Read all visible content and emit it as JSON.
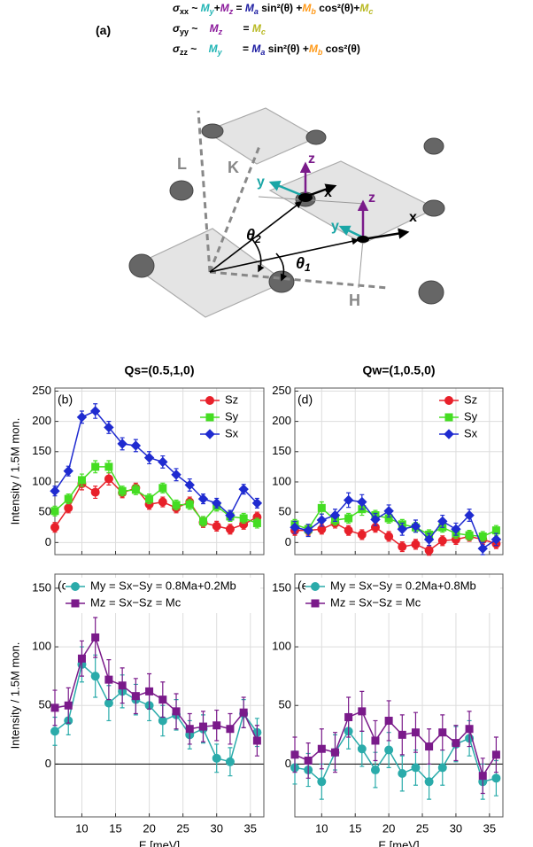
{
  "panel_label": "(a)",
  "equations": [
    [
      "σ",
      "xx",
      " ~ ",
      "M",
      "y",
      "+",
      "M",
      "z",
      " = ",
      "M",
      "a",
      " sin²(θ) +",
      "M",
      "b",
      " cos²(θ)+",
      "M",
      "c"
    ],
    [
      "σ",
      "yy",
      " ~    ",
      "M",
      "z",
      "       = ",
      "M",
      "c"
    ],
    [
      "σ",
      "zz",
      " ~    ",
      "M",
      "y",
      "       = ",
      "M",
      "a",
      " sin²(θ) +",
      "M",
      "b",
      " cos²(θ)"
    ]
  ],
  "diagram": {
    "labels": [
      "L",
      "K",
      "H",
      "x",
      "y",
      "z",
      "x",
      "y",
      "z"
    ],
    "angles": [
      [
        "θ",
        "2"
      ],
      [
        "θ",
        "1"
      ]
    ]
  },
  "chart_data": [
    {
      "type": "line",
      "title": "Qs=(0.5,1,0)",
      "panel_label": "(b)",
      "ylabel": "Intensity / 1.5M mon.",
      "x": [
        6,
        8,
        10,
        12,
        14,
        16,
        18,
        20,
        22,
        24,
        26,
        28,
        30,
        32,
        34,
        36
      ],
      "series": [
        {
          "name": "Sz",
          "color": "#e8202a",
          "marker": "circle",
          "values": [
            25,
            57,
            97,
            83,
            105,
            82,
            90,
            63,
            67,
            57,
            67,
            33,
            27,
            22,
            30,
            42
          ],
          "errors": [
            8,
            8,
            10,
            10,
            10,
            8,
            8,
            8,
            8,
            8,
            8,
            8,
            8,
            8,
            8,
            8
          ]
        },
        {
          "name": "Sy",
          "color": "#44dd22",
          "marker": "square",
          "values": [
            52,
            72,
            103,
            125,
            125,
            85,
            87,
            72,
            90,
            62,
            63,
            35,
            60,
            43,
            40,
            32
          ],
          "errors": [
            8,
            8,
            10,
            10,
            10,
            8,
            8,
            8,
            8,
            8,
            8,
            8,
            8,
            8,
            8,
            8
          ]
        },
        {
          "name": "Sx",
          "color": "#1f2bd0",
          "marker": "diamond",
          "values": [
            85,
            118,
            207,
            217,
            190,
            163,
            160,
            140,
            133,
            112,
            95,
            72,
            65,
            45,
            88,
            65
          ],
          "errors": [
            8,
            8,
            10,
            12,
            10,
            10,
            10,
            10,
            10,
            10,
            10,
            8,
            8,
            8,
            8,
            8
          ]
        }
      ],
      "xlim": [
        6,
        37
      ],
      "ylim": [
        -20,
        255
      ],
      "xticks": [
        10,
        15,
        20,
        25,
        30,
        35
      ],
      "yticks": [
        0,
        50,
        100,
        150,
        200,
        250
      ],
      "grid": true,
      "legend": "upper right"
    },
    {
      "type": "line",
      "title": "Qw=(1,0.5,0)",
      "panel_label": "(d)",
      "x": [
        6,
        8,
        10,
        12,
        14,
        16,
        18,
        20,
        22,
        24,
        26,
        28,
        30,
        32,
        34,
        36
      ],
      "series": [
        {
          "name": "Sz",
          "color": "#e8202a",
          "marker": "circle",
          "values": [
            20,
            20,
            22,
            32,
            20,
            13,
            25,
            10,
            -7,
            -3,
            -13,
            3,
            5,
            10,
            5,
            -2
          ],
          "errors": [
            8,
            8,
            8,
            8,
            8,
            8,
            8,
            8,
            8,
            8,
            8,
            8,
            8,
            8,
            8,
            8
          ]
        },
        {
          "name": "Sy",
          "color": "#44dd22",
          "marker": "square",
          "values": [
            30,
            22,
            57,
            37,
            40,
            55,
            45,
            40,
            30,
            25,
            13,
            25,
            15,
            12,
            10,
            20
          ],
          "errors": [
            8,
            8,
            10,
            8,
            8,
            10,
            8,
            8,
            8,
            8,
            8,
            8,
            8,
            8,
            8,
            8
          ]
        },
        {
          "name": "Sx",
          "color": "#1f2bd0",
          "marker": "diamond",
          "values": [
            25,
            20,
            37,
            45,
            70,
            67,
            38,
            52,
            22,
            27,
            5,
            35,
            22,
            45,
            -10,
            5
          ],
          "errors": [
            10,
            10,
            10,
            10,
            12,
            12,
            10,
            10,
            10,
            10,
            10,
            10,
            10,
            10,
            10,
            10
          ]
        }
      ],
      "xlim": [
        6,
        37
      ],
      "ylim": [
        -20,
        255
      ],
      "xticks": [
        10,
        15,
        20,
        25,
        30,
        35
      ],
      "yticks": [
        0,
        50,
        100,
        150,
        200,
        250
      ],
      "grid": true,
      "legend": "upper right"
    },
    {
      "type": "line",
      "panel_label": "(c",
      "ylabel": "Intensity / 1.5M mon.",
      "xlabel": "E [meV]",
      "x": [
        6,
        8,
        10,
        12,
        14,
        16,
        18,
        20,
        22,
        24,
        26,
        28,
        30,
        32,
        34,
        36
      ],
      "series": [
        {
          "name": "My = Sx−Sy = 0.8Ma+0.2Mb",
          "color": "#2aabaa",
          "marker": "circle",
          "values": [
            28,
            37,
            85,
            75,
            52,
            62,
            55,
            50,
            37,
            42,
            25,
            30,
            5,
            2,
            43,
            27
          ],
          "errors": [
            12,
            12,
            15,
            18,
            15,
            14,
            13,
            13,
            13,
            13,
            12,
            12,
            12,
            12,
            12,
            12
          ]
        },
        {
          "name": "Mz = Sx−Sz = Mc",
          "color": "#7a1a8a",
          "marker": "square",
          "values": [
            48,
            50,
            90,
            108,
            72,
            67,
            58,
            62,
            55,
            45,
            30,
            32,
            33,
            30,
            44,
            20
          ],
          "errors": [
            15,
            15,
            15,
            17,
            17,
            15,
            15,
            15,
            15,
            15,
            13,
            13,
            13,
            13,
            13,
            13
          ]
        }
      ],
      "xlim": [
        6,
        37
      ],
      "ylim": [
        -45,
        162
      ],
      "xticks": [
        10,
        15,
        20,
        25,
        30,
        35
      ],
      "yticks": [
        0,
        50,
        100,
        150
      ],
      "grid": true,
      "legend": "upper left"
    },
    {
      "type": "line",
      "panel_label": "(e",
      "xlabel": "E [meV]",
      "x": [
        6,
        8,
        10,
        12,
        14,
        16,
        18,
        20,
        22,
        24,
        26,
        28,
        30,
        32,
        34,
        36
      ],
      "series": [
        {
          "name": "My = Sx−Sy = 0.2Ma+0.8Mb",
          "color": "#2aabaa",
          "marker": "circle",
          "values": [
            -3,
            -5,
            -15,
            10,
            28,
            13,
            -5,
            12,
            -8,
            -3,
            -15,
            -3,
            17,
            22,
            -15,
            -12
          ],
          "errors": [
            14,
            14,
            15,
            15,
            15,
            15,
            15,
            15,
            15,
            15,
            15,
            15,
            15,
            15,
            15,
            15
          ]
        },
        {
          "name": "Mz = Sx−Sz = Mc",
          "color": "#7a1a8a",
          "marker": "square",
          "values": [
            8,
            3,
            13,
            10,
            40,
            45,
            20,
            37,
            25,
            27,
            15,
            27,
            18,
            30,
            -10,
            8
          ],
          "errors": [
            15,
            15,
            17,
            17,
            17,
            17,
            17,
            17,
            17,
            17,
            15,
            15,
            15,
            15,
            15,
            15
          ]
        }
      ],
      "xlim": [
        6,
        37
      ],
      "ylim": [
        -45,
        162
      ],
      "xticks": [
        10,
        15,
        20,
        25,
        30,
        35
      ],
      "yticks": [
        0,
        50,
        100,
        150
      ],
      "grid": true,
      "legend": "upper left"
    }
  ]
}
